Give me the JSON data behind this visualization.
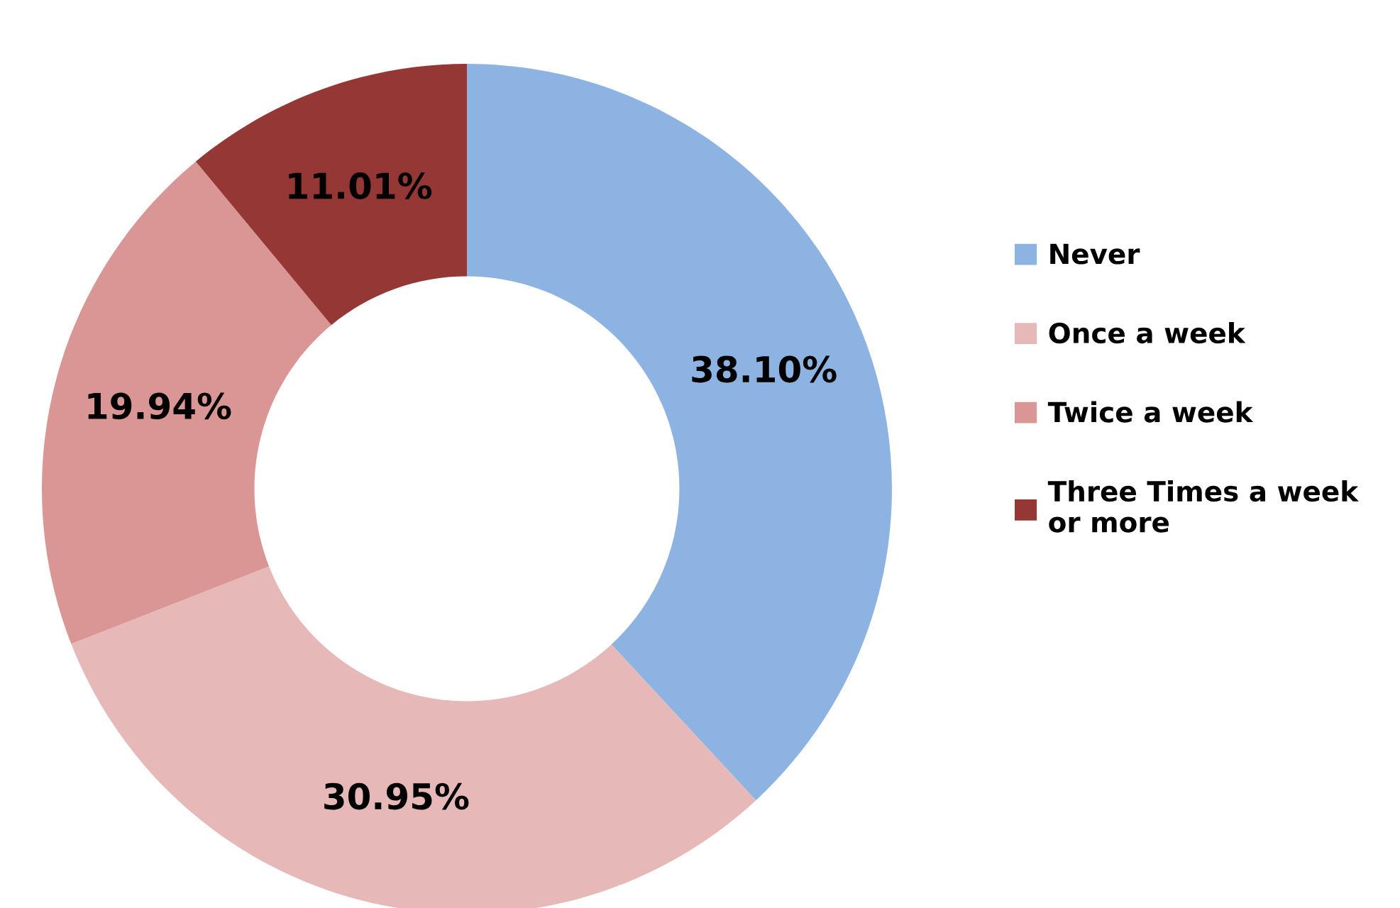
{
  "chart_data": {
    "type": "donut",
    "categories": [
      "Never",
      "Once a week",
      "Twice a week",
      "Three Times a week or more"
    ],
    "values": [
      38.1,
      30.95,
      19.94,
      11.01
    ],
    "colors": [
      "#8db3e2",
      "#e6b9b8",
      "#d99694",
      "#953735"
    ],
    "value_labels": [
      "38.10%",
      "30.95%",
      "19.94%",
      "11.01%"
    ],
    "legend": "right"
  }
}
